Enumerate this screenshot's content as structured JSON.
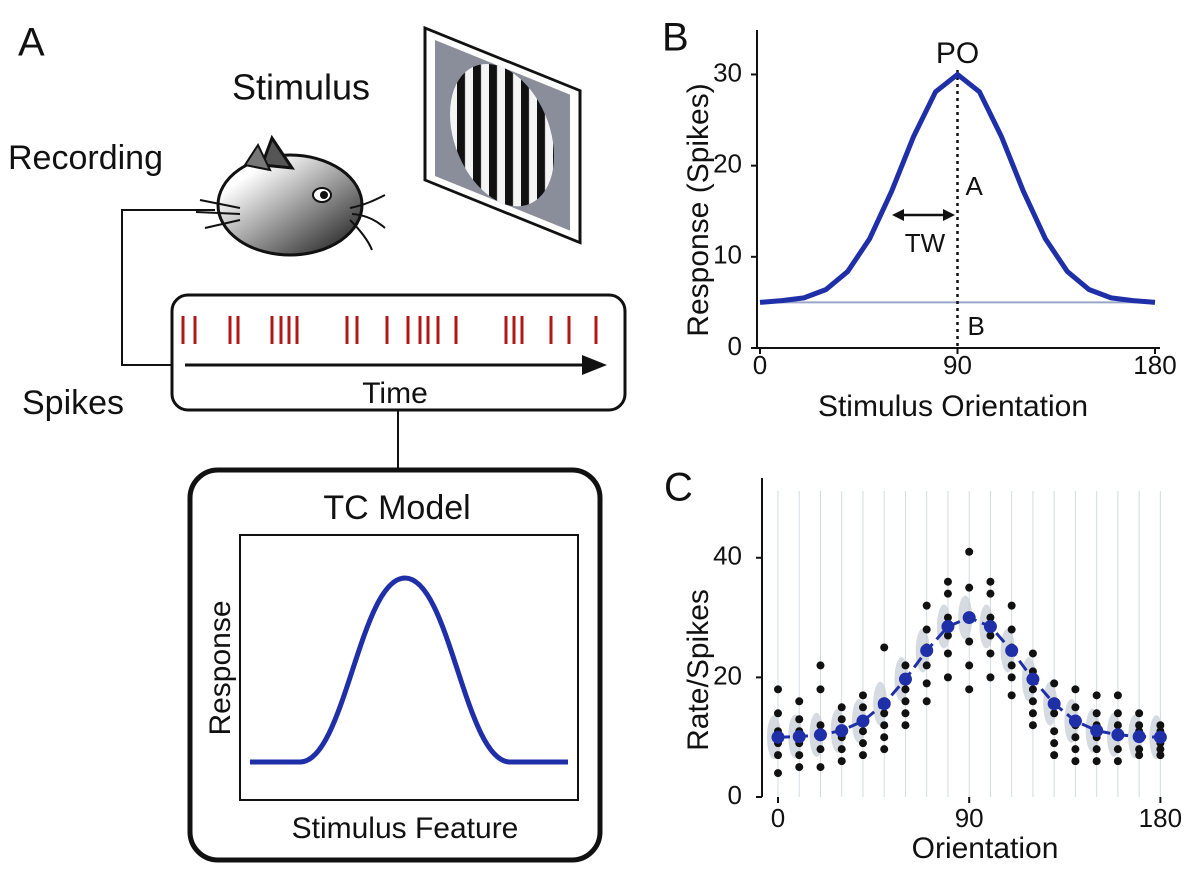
{
  "panel_a": {
    "label": "A",
    "stimulus": "Stimulus",
    "recording": "Recording",
    "spikes": "Spikes",
    "time": "Time",
    "model_title": "TC Model",
    "model_y_label": "Response",
    "model_x_label": "Stimulus Feature"
  },
  "chart_data": [
    {
      "type": "line",
      "panel_label": "B",
      "y_label": "Response (Spikes)",
      "x_label": "Stimulus Orientation",
      "x": [
        0,
        10,
        20,
        30,
        40,
        50,
        60,
        70,
        80,
        90,
        100,
        110,
        120,
        130,
        140,
        150,
        160,
        170,
        180
      ],
      "values": [
        5.0,
        5.2,
        5.5,
        6.4,
        8.4,
        12.0,
        17.2,
        23.2,
        28.1,
        30,
        28.1,
        23.2,
        17.2,
        12.0,
        8.4,
        6.4,
        5.5,
        5.2,
        5.0
      ],
      "color": "#1f2fa8",
      "baseline": 5,
      "baseline_color": "#9aa6c8",
      "peak_x": 90,
      "annotations": [
        "PO",
        "A",
        "TW",
        "B"
      ],
      "xlim": [
        0,
        180
      ],
      "xticks": [
        0,
        90,
        180
      ],
      "ylim": [
        0,
        34
      ],
      "yticks": [
        0,
        10,
        20,
        30
      ]
    },
    {
      "type": "scatter",
      "panel_label": "C",
      "y_label": "Rate/Spikes",
      "x_label": "Orientation",
      "x": [
        0,
        0,
        0,
        0,
        0,
        0,
        10,
        10,
        10,
        10,
        10,
        10,
        20,
        20,
        20,
        20,
        20,
        20,
        30,
        30,
        30,
        30,
        30,
        30,
        40,
        40,
        40,
        40,
        40,
        40,
        50,
        50,
        50,
        50,
        50,
        50,
        60,
        60,
        60,
        60,
        60,
        60,
        70,
        70,
        70,
        70,
        70,
        70,
        80,
        80,
        80,
        80,
        80,
        80,
        90,
        90,
        90,
        90,
        90,
        90,
        100,
        100,
        100,
        100,
        100,
        100,
        110,
        110,
        110,
        110,
        110,
        110,
        120,
        120,
        120,
        120,
        120,
        120,
        130,
        130,
        130,
        130,
        130,
        130,
        140,
        140,
        140,
        140,
        140,
        140,
        150,
        150,
        150,
        150,
        150,
        150,
        160,
        160,
        160,
        160,
        160,
        160,
        170,
        170,
        170,
        170,
        170,
        170,
        180,
        180,
        180,
        180,
        180,
        180
      ],
      "values": [
        4,
        7,
        9,
        11,
        14,
        18,
        5,
        7,
        9,
        11,
        13,
        16,
        5,
        8,
        10,
        12,
        18,
        22,
        6,
        8,
        10,
        11,
        13,
        15,
        7,
        9,
        11,
        13,
        15,
        17,
        8,
        10,
        12,
        14,
        16,
        25,
        12,
        14,
        16,
        18,
        20,
        22,
        16,
        19,
        22,
        25,
        28,
        32,
        20,
        24,
        27,
        30,
        34,
        36,
        18,
        22,
        26,
        30,
        35,
        41,
        20,
        24,
        27,
        30,
        34,
        36,
        17,
        20,
        22,
        25,
        28,
        32,
        12,
        14,
        16,
        18,
        21,
        24,
        7,
        9,
        11,
        14,
        16,
        19,
        6,
        8,
        10,
        12,
        15,
        18,
        6,
        8,
        10,
        12,
        14,
        17,
        6,
        8,
        10,
        12,
        14,
        17,
        7,
        8,
        10,
        11,
        12,
        14,
        7,
        8,
        9,
        10,
        11,
        12
      ],
      "color": "#111111",
      "fit": {
        "x": [
          0,
          10,
          20,
          30,
          40,
          50,
          60,
          70,
          80,
          90,
          100,
          110,
          120,
          130,
          140,
          150,
          160,
          170,
          180
        ],
        "values": [
          10.0,
          10.1,
          10.4,
          11.1,
          12.7,
          15.6,
          19.7,
          24.5,
          28.5,
          30.0,
          28.5,
          24.5,
          19.7,
          15.6,
          12.7,
          11.1,
          10.4,
          10.1,
          10.0
        ],
        "color": "#1f2fa8"
      },
      "xlim": [
        -8,
        185
      ],
      "xticks": [
        0,
        90,
        180
      ],
      "ylim": [
        0,
        52
      ],
      "yticks": [
        0,
        20,
        40
      ]
    }
  ]
}
